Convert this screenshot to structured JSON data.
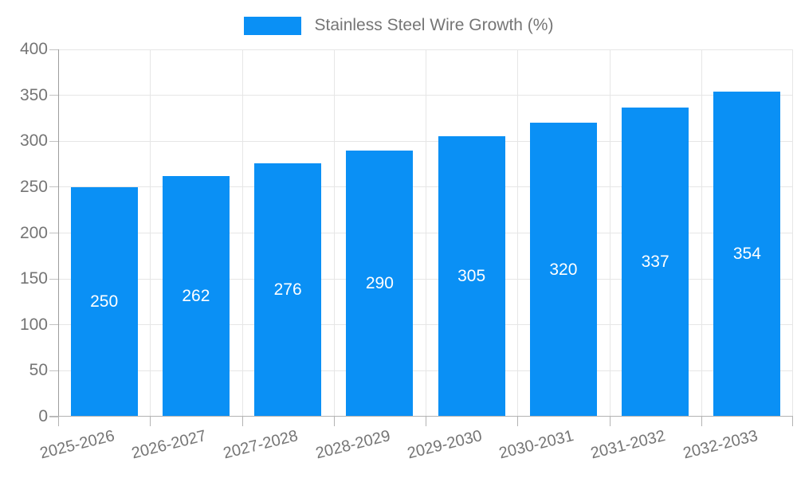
{
  "chart_data": {
    "type": "bar",
    "title": "",
    "series_name": "Stainless Steel Wire Growth (%)",
    "categories": [
      "2025-2026",
      "2026-2027",
      "2027-2028",
      "2028-2029",
      "2029-2030",
      "2030-2031",
      "2031-2032",
      "2032-2033"
    ],
    "values": [
      250,
      262,
      276,
      290,
      305,
      320,
      337,
      354
    ],
    "xlabel": "",
    "ylabel": "",
    "ylim": [
      0,
      400
    ],
    "ytick_step": 50,
    "grid": true,
    "legend_position": "top-center",
    "bar_color": "#0a90f5",
    "value_label_color": "#ffffff",
    "axis_text_color": "#757575",
    "gridline_color": "#e6e6e6",
    "axis_line_color": "#9e9e9e"
  }
}
